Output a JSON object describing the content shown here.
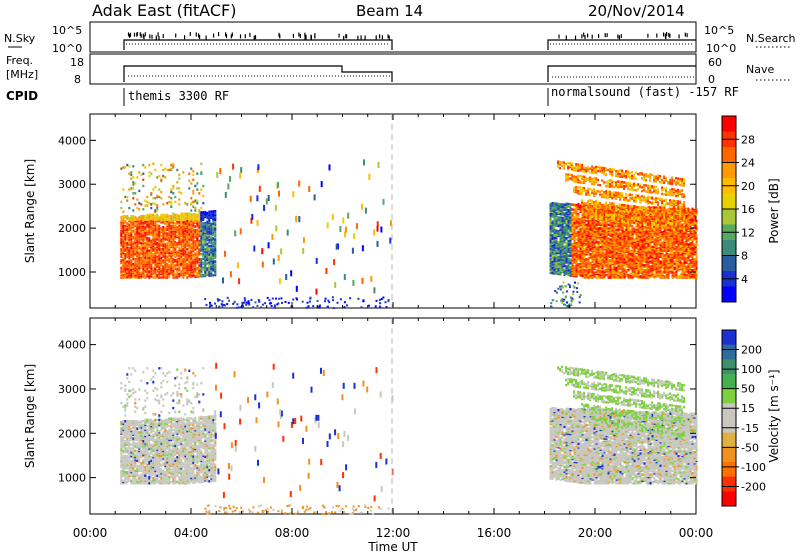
{
  "header": {
    "radar": "Adak East (fitACF)",
    "beam": "Beam 14",
    "date": "20/Nov/2014"
  },
  "panels": {
    "nsky": {
      "label": "N.Sky",
      "ticks": [
        "10^5",
        "10^0"
      ]
    },
    "nsearch": {
      "label": "N.Search",
      "ticks": [
        "10^5",
        "10^0"
      ]
    },
    "freq": {
      "label_line1": "Freq.",
      "label_line2": "[MHz]",
      "ticks": [
        "18",
        "8"
      ]
    },
    "nave": {
      "label": "Nave",
      "ticks": [
        "60",
        "0"
      ]
    },
    "cpid": {
      "label": "CPID",
      "segments": [
        "themis 3300 RF",
        "normalsound (fast) -157 RF"
      ]
    }
  },
  "chart_data": [
    {
      "type": "heatmap",
      "name": "power",
      "xlabel": "",
      "ylabel": "Slant Range [km]",
      "xlim": [
        0,
        24
      ],
      "ylim": [
        180,
        4600
      ],
      "yticks": [
        1000,
        2000,
        3000,
        4000
      ],
      "time_ticks": [
        "00:00",
        "04:00",
        "08:00",
        "12:00",
        "16:00",
        "20:00",
        "00:00"
      ],
      "data_gaps_hours": [
        [
          0,
          1.2
        ],
        [
          12,
          18.2
        ]
      ],
      "colorbar": {
        "label": "Power [dB]",
        "ticks": [
          "28",
          "24",
          "20",
          "16",
          "12",
          "8",
          "4"
        ],
        "colors": [
          "#ff0000",
          "#ff3300",
          "#ff6600",
          "#ff9900",
          "#ffbb00",
          "#e6d200",
          "#a8c838",
          "#58a860",
          "#3a8c78",
          "#2a5ca0",
          "#1a30d0",
          "#0000ff"
        ]
      }
    },
    {
      "type": "heatmap",
      "name": "velocity",
      "xlabel": "Time UT",
      "ylabel": "Slant Range [km]",
      "xlim": [
        0,
        24
      ],
      "ylim": [
        180,
        4600
      ],
      "yticks": [
        1000,
        2000,
        3000,
        4000
      ],
      "time_ticks": [
        "00:00",
        "04:00",
        "08:00",
        "12:00",
        "16:00",
        "20:00",
        "00:00"
      ],
      "colorbar": {
        "label": "Velocity [m s⁻¹]",
        "ticks": [
          "200",
          "100",
          "50",
          "15",
          "-15",
          "-50",
          "-100",
          "-200"
        ],
        "colors": [
          "#1a30d0",
          "#2f6a9e",
          "#3f8f6a",
          "#44b050",
          "#7ed040",
          "#c8c8c0",
          "#c8c8c0",
          "#e0b040",
          "#f09020",
          "#ff7000",
          "#ff3000",
          "#ff0000"
        ]
      }
    }
  ]
}
